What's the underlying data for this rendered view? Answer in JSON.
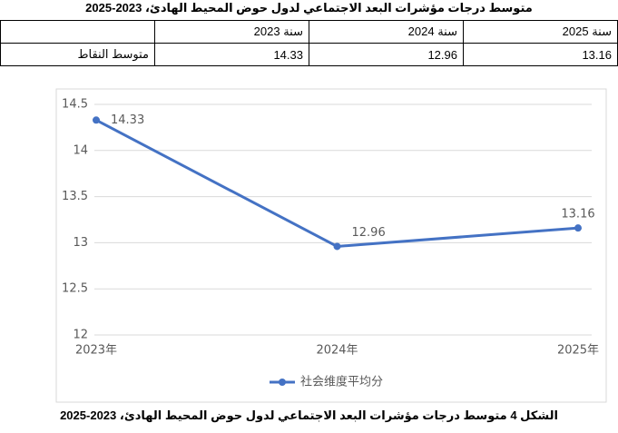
{
  "title": "متوسط درجات مؤشرات البعد الاجتماعي لدول حوض المحيط الهادئ، 2023-2025",
  "table": {
    "header": [
      "سنة 2025",
      "سنة 2024",
      "سنة 2023"
    ],
    "rows": [
      [
        "13.16",
        "12.96",
        "14.33",
        "متوسط النقاط"
      ]
    ]
  },
  "chart_data": {
    "type": "line",
    "categories": [
      "2023年",
      "2024年",
      "2025年"
    ],
    "series": [
      {
        "name": "社会维度平均分",
        "color": "#4472c4",
        "values": [
          14.33,
          12.96,
          13.16
        ]
      }
    ],
    "ylim": [
      12,
      14.5
    ],
    "yticks": [
      12,
      12.5,
      13,
      13.5,
      14,
      14.5
    ],
    "grid": true,
    "legend": "bottom"
  },
  "caption": "الشكل 4 متوسط درجات مؤشرات البعد الاجتماعي لدول حوض المحيط الهادئ، 2023-2025"
}
